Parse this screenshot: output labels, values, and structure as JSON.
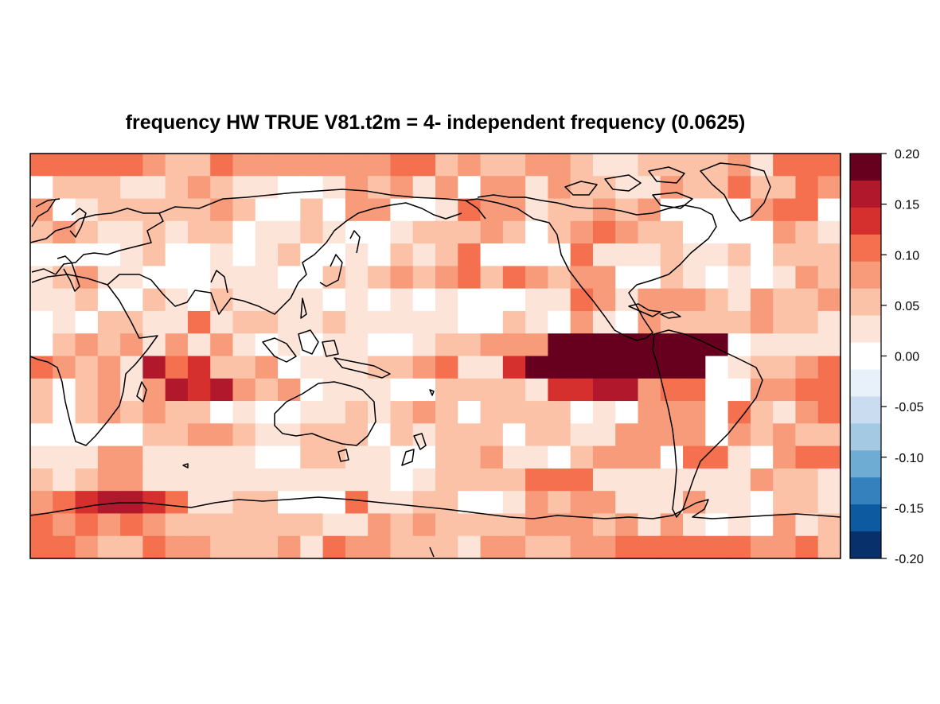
{
  "title": "frequency HW TRUE V81.t2m = 4- independent frequency (0.0625)",
  "colorbar": {
    "ticks": [
      "0.20",
      "0.15",
      "0.10",
      "0.05",
      "0.00",
      "-0.05",
      "-0.10",
      "-0.15",
      "-0.20"
    ],
    "colors": [
      "#67001f",
      "#b2182b",
      "#d6302e",
      "#f4704f",
      "#f79b7a",
      "#fbc2a8",
      "#fde4d8",
      "#ffffff",
      "#e8f0f9",
      "#cadcef",
      "#a4cae3",
      "#6eacd4",
      "#3581bd",
      "#0e5aa1",
      "#08306b"
    ]
  },
  "chart_data": {
    "type": "heatmap",
    "projection": "equirectangular, centered on Pacific (lon 0-360)",
    "value_range": [
      -0.2,
      0.2
    ],
    "grid_cols": 36,
    "grid_rows": 18,
    "legend": "right colorbar",
    "level_key": {
      "7": 0.1875,
      "6": 0.1625,
      "5": 0.1375,
      "4": 0.1125,
      "3": 0.0875,
      "2": 0.0625,
      "1": 0.0375,
      "0": 0.0,
      "-1": -0.0375,
      "-2": -0.0625
    },
    "levels": [
      "444443224333333344232233211222231444",
      "022211232110013231303313221132242243",
      "301222223200203300143312232300003440",
      "232112122011210012223202343220000321",
      "000012001012001021240000411121120222",
      "123110001110021232342432330021010132",
      "112002102111101010100011431333213223",
      "010221141221121111100210310322223221",
      "023231313101011001223337777777701111",
      "432316452230111223411577777777012234",
      "202313656323011100222215566344003344",
      "202323220100112123202222010333042134",
      "000002233211222021222022113333032322",
      "111331111100221100223110233304410344",
      "212331111111111101222244411111113221",
      "345665411220004112200132331113110221",
      "434343222222211323222233323131010312",
      "443224332223143322213322334444443342"
    ]
  }
}
